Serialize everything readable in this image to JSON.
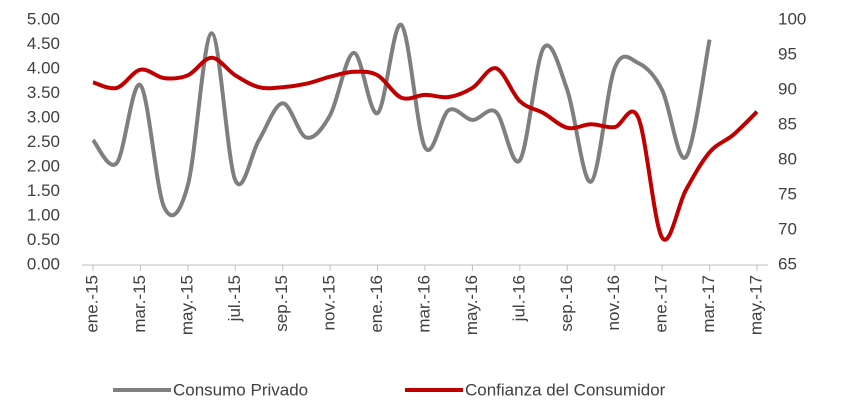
{
  "chart_data": {
    "type": "line",
    "categories": [
      "ene.-15",
      null,
      "mar.-15",
      null,
      "may.-15",
      null,
      "jul.-15",
      null,
      "sep.-15",
      null,
      "nov.-15",
      null,
      "ene.-16",
      null,
      "mar.-16",
      null,
      "may.-16",
      null,
      "jul.-16",
      null,
      "sep.-16",
      null,
      "nov.-16",
      null,
      "ene.-17",
      null,
      "mar.-17",
      null,
      "may.-17"
    ],
    "series": [
      {
        "name": "Consumo Privado",
        "color": "#7f7f7f",
        "axis": "y",
        "values": [
          2.55,
          2.08,
          3.67,
          1.18,
          1.63,
          4.73,
          1.73,
          2.55,
          3.3,
          2.6,
          3.06,
          4.33,
          3.1,
          4.9,
          2.4,
          3.16,
          2.96,
          3.12,
          2.14,
          4.43,
          3.57,
          1.7,
          4.02,
          4.12,
          3.57,
          2.2,
          4.6,
          null,
          null
        ]
      },
      {
        "name": "Confianza del Consumidor",
        "color": "#c00000",
        "axis": "y2",
        "values": [
          91.1,
          90.3,
          92.9,
          91.7,
          92.1,
          94.6,
          92.1,
          90.4,
          90.4,
          90.9,
          91.9,
          92.6,
          92.1,
          88.9,
          89.3,
          89.0,
          90.3,
          93.1,
          88.4,
          86.7,
          84.6,
          85.1,
          84.7,
          86.0,
          68.9,
          75.7,
          81.1,
          83.6,
          86.9
        ]
      }
    ],
    "ylim": [
      0,
      5
    ],
    "yticks": [
      {
        "value": 0,
        "label": "0.00"
      },
      {
        "value": 0.5,
        "label": "0.50"
      },
      {
        "value": 1,
        "label": "1.00"
      },
      {
        "value": 1.5,
        "label": "1.50"
      },
      {
        "value": 2,
        "label": "2.00"
      },
      {
        "value": 2.5,
        "label": "2.50"
      },
      {
        "value": 3,
        "label": "3.00"
      },
      {
        "value": 3.5,
        "label": "3.50"
      },
      {
        "value": 4,
        "label": "4.00"
      },
      {
        "value": 4.5,
        "label": "4.50"
      },
      {
        "value": 5,
        "label": "5.00"
      }
    ],
    "y2lim": [
      65,
      100
    ],
    "y2ticks": [
      65,
      70,
      75,
      80,
      85,
      90,
      95,
      100
    ],
    "grid": false,
    "legend": "bottom"
  }
}
